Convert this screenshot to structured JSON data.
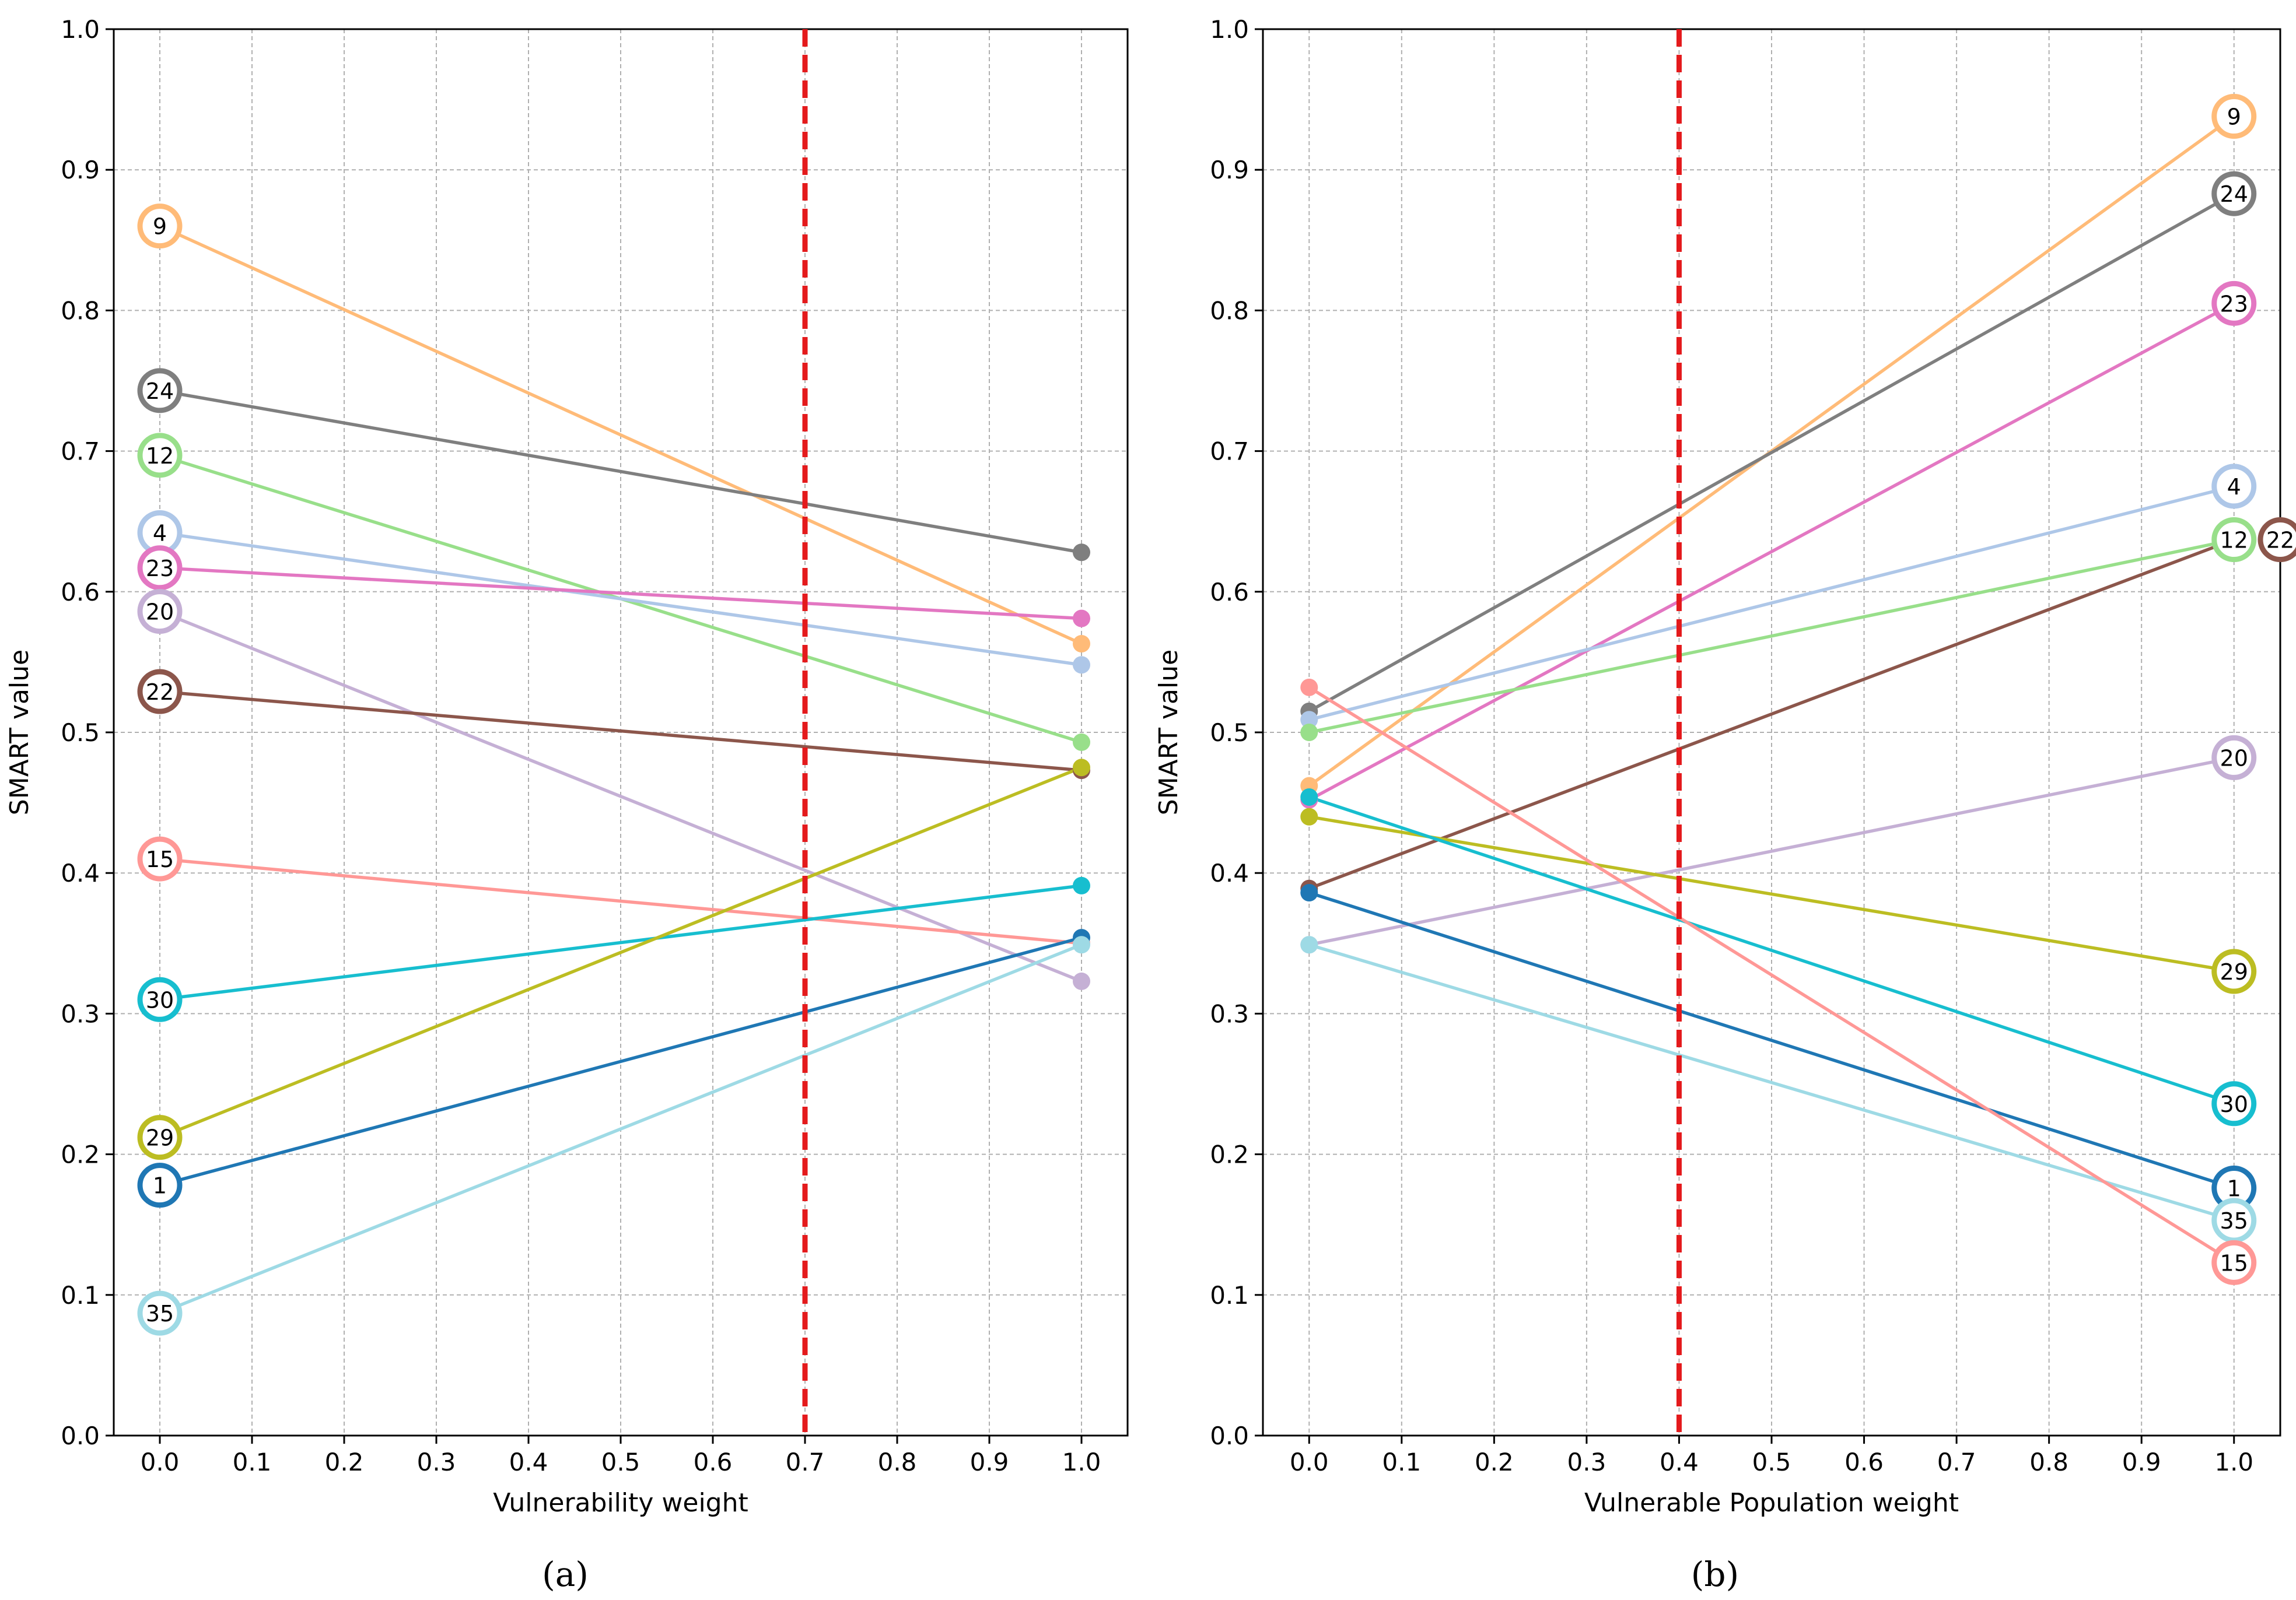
{
  "chart_data": [
    {
      "type": "line",
      "panel_label": "(a)",
      "xlabel": "Vulnerability weight",
      "ylabel": "SMART value",
      "xlim": [
        -0.05,
        1.05
      ],
      "ylim": [
        0.0,
        1.0
      ],
      "x_ticks": [
        "0.0",
        "0.1",
        "0.2",
        "0.3",
        "0.4",
        "0.5",
        "0.6",
        "0.7",
        "0.8",
        "0.9",
        "1.0"
      ],
      "y_ticks": [
        "0.0",
        "0.1",
        "0.2",
        "0.3",
        "0.4",
        "0.5",
        "0.6",
        "0.7",
        "0.8",
        "0.9",
        "1.0"
      ],
      "grid": true,
      "threshold_x": 0.7,
      "threshold_color": "#e41a1c",
      "label_side": "start",
      "series": [
        {
          "name": "9",
          "color": "#ffbb78",
          "start": 0.86,
          "end": 0.563
        },
        {
          "name": "24",
          "color": "#7f7f7f",
          "start": 0.743,
          "end": 0.628
        },
        {
          "name": "12",
          "color": "#98df8a",
          "start": 0.697,
          "end": 0.493
        },
        {
          "name": "4",
          "color": "#aec7e8",
          "start": 0.642,
          "end": 0.548
        },
        {
          "name": "23",
          "color": "#e377c2",
          "start": 0.617,
          "end": 0.581
        },
        {
          "name": "20",
          "color": "#c5b0d5",
          "start": 0.586,
          "end": 0.323
        },
        {
          "name": "22",
          "color": "#8c564b",
          "start": 0.529,
          "end": 0.473
        },
        {
          "name": "15",
          "color": "#ff9896",
          "start": 0.41,
          "end": 0.35
        },
        {
          "name": "30",
          "color": "#17becf",
          "start": 0.31,
          "end": 0.391
        },
        {
          "name": "29",
          "color": "#bcbd22",
          "start": 0.212,
          "end": 0.475
        },
        {
          "name": "1",
          "color": "#1f77b4",
          "start": 0.178,
          "end": 0.354
        },
        {
          "name": "35",
          "color": "#9edae5",
          "start": 0.087,
          "end": 0.349
        }
      ]
    },
    {
      "type": "line",
      "panel_label": "(b)",
      "xlabel": "Vulnerable Population weight",
      "ylabel": "SMART value",
      "xlim": [
        -0.05,
        1.05
      ],
      "ylim": [
        0.0,
        1.0
      ],
      "x_ticks": [
        "0.0",
        "0.1",
        "0.2",
        "0.3",
        "0.4",
        "0.5",
        "0.6",
        "0.7",
        "0.8",
        "0.9",
        "1.0"
      ],
      "y_ticks": [
        "0.0",
        "0.1",
        "0.2",
        "0.3",
        "0.4",
        "0.5",
        "0.6",
        "0.7",
        "0.8",
        "0.9",
        "1.0"
      ],
      "grid": true,
      "threshold_x": 0.4,
      "threshold_color": "#e41a1c",
      "label_side": "end",
      "series": [
        {
          "name": "9",
          "color": "#ffbb78",
          "start": 0.462,
          "end": 0.938
        },
        {
          "name": "24",
          "color": "#7f7f7f",
          "start": 0.515,
          "end": 0.883
        },
        {
          "name": "23",
          "color": "#e377c2",
          "start": 0.452,
          "end": 0.805
        },
        {
          "name": "4",
          "color": "#aec7e8",
          "start": 0.509,
          "end": 0.675
        },
        {
          "name": "12",
          "color": "#98df8a",
          "start": 0.5,
          "end": 0.637
        },
        {
          "name": "22",
          "color": "#8c564b",
          "start": 0.389,
          "end": 0.637,
          "label_x": 1.05
        },
        {
          "name": "20",
          "color": "#c5b0d5",
          "start": 0.349,
          "end": 0.482
        },
        {
          "name": "29",
          "color": "#bcbd22",
          "start": 0.44,
          "end": 0.33
        },
        {
          "name": "30",
          "color": "#17becf",
          "start": 0.454,
          "end": 0.236
        },
        {
          "name": "1",
          "color": "#1f77b4",
          "start": 0.386,
          "end": 0.176
        },
        {
          "name": "35",
          "color": "#9edae5",
          "start": 0.349,
          "end": 0.153
        },
        {
          "name": "15",
          "color": "#ff9896",
          "start": 0.532,
          "end": 0.123
        }
      ]
    }
  ]
}
